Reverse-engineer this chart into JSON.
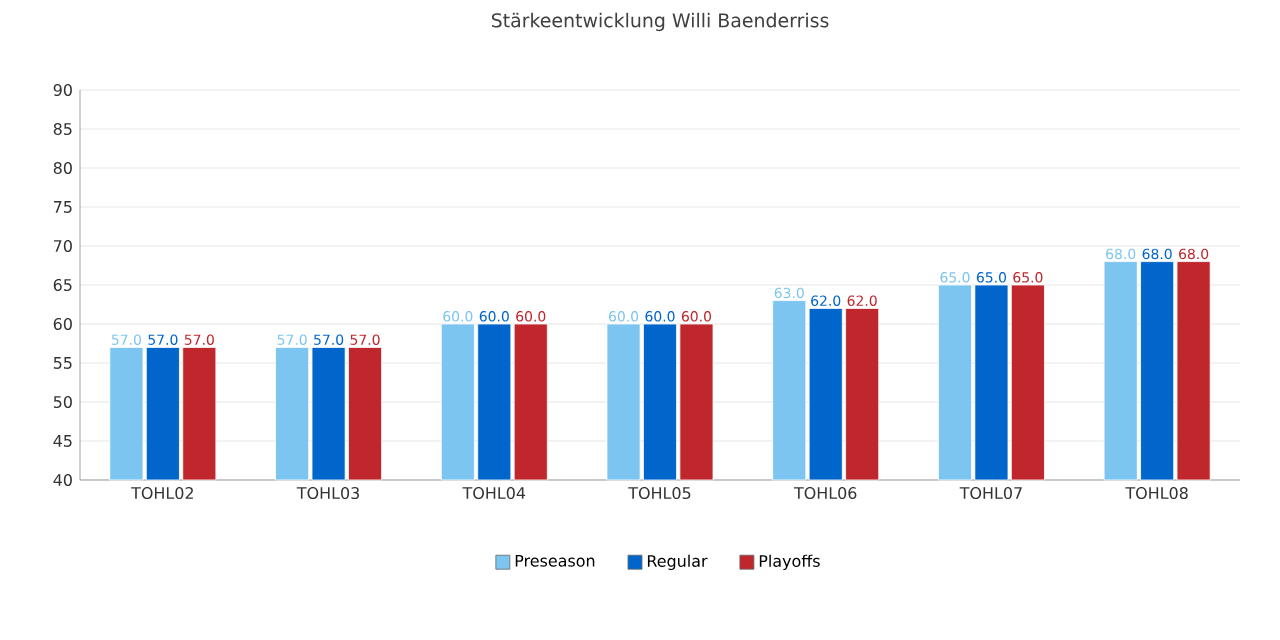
{
  "chart_data": {
    "type": "bar",
    "title": "Stärkeentwicklung Willi Baenderriss",
    "categories": [
      "TOHL02",
      "TOHL03",
      "TOHL04",
      "TOHL05",
      "TOHL06",
      "TOHL07",
      "TOHL08"
    ],
    "series": [
      {
        "name": "Preseason",
        "color": "#7cc5f0",
        "values": [
          57,
          57,
          60,
          60,
          63,
          65,
          68
        ],
        "value_labels": [
          "57.0",
          "57.0",
          "60.0",
          "60.0",
          "63.0",
          "65.0",
          "68.0"
        ]
      },
      {
        "name": "Regular",
        "color": "#0066cc",
        "values": [
          57,
          57,
          60,
          60,
          62,
          65,
          68
        ],
        "value_labels": [
          "57.0",
          "57.0",
          "60.0",
          "60.0",
          "62.0",
          "65.0",
          "68.0"
        ]
      },
      {
        "name": "Playoffs",
        "color": "#c0272d",
        "values": [
          57,
          57,
          60,
          60,
          62,
          65,
          68
        ],
        "value_labels": [
          "57.0",
          "57.0",
          "60.0",
          "60.0",
          "62.0",
          "65.0",
          "68.0"
        ]
      }
    ],
    "ylim": [
      40,
      90
    ],
    "yticks": [
      40,
      45,
      50,
      55,
      60,
      65,
      70,
      75,
      80,
      85,
      90
    ],
    "grid": "y",
    "legend": "bottom"
  }
}
